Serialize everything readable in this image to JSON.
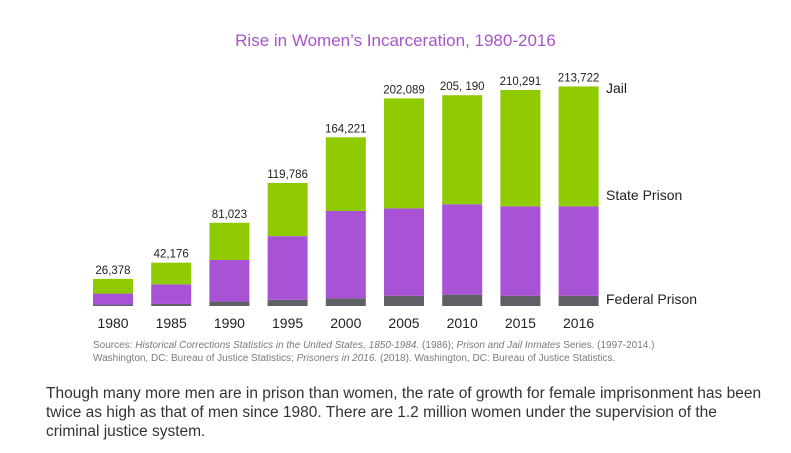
{
  "chart_data": {
    "type": "bar",
    "stacked": true,
    "title": "Rise in Women’s Incarceration, 1980-2016",
    "categories": [
      "1980",
      "1985",
      "1990",
      "1995",
      "2000",
      "2005",
      "2010",
      "2015",
      "2016"
    ],
    "totals": [
      26378,
      42176,
      81023,
      119786,
      164221,
      202089,
      205190,
      210291,
      213722
    ],
    "total_labels": [
      "26,378",
      "42,176",
      "81,023",
      "119,786",
      "164,221",
      "202,089",
      "205, 190",
      "210,291",
      "213,722"
    ],
    "series": [
      {
        "name": "Federal Prison",
        "color": "#5f5f66",
        "values": [
          1400,
          2000,
          4300,
          6000,
          7500,
          10000,
          11000,
          10000,
          10000
        ]
      },
      {
        "name": "State Prison",
        "color": "#a852d6",
        "values": [
          10700,
          19100,
          40500,
          62000,
          85000,
          85000,
          88000,
          87000,
          87000
        ]
      },
      {
        "name": "Jail",
        "color": "#8fcb00",
        "values": [
          14278,
          21076,
          36223,
          51786,
          71721,
          107089,
          106190,
          113291,
          116722
        ]
      }
    ],
    "ylim": [
      0,
      220000
    ],
    "legend_placement": "right, inline with segments"
  },
  "sources": {
    "p1": "Sources: ",
    "i1": "Historical Corrections Statistics in the United States, 1850-1984.",
    "p2": " (1986); ",
    "i2": "Prison and Jail Inmates",
    "p3": " Series. (1997-2014.)",
    "p4": "Washington, DC: Bureau of Justice Statistics; ",
    "i3": "Prisoners in 2016.",
    "p5": " (2018). Washington, DC: Bureau of Justice Statistics."
  },
  "body_text": "Though many more men are in prison than women, the rate of growth for female imprisonment has been twice as high as that of men since 1980. There are 1.2 million women under the supervision of the criminal justice system."
}
